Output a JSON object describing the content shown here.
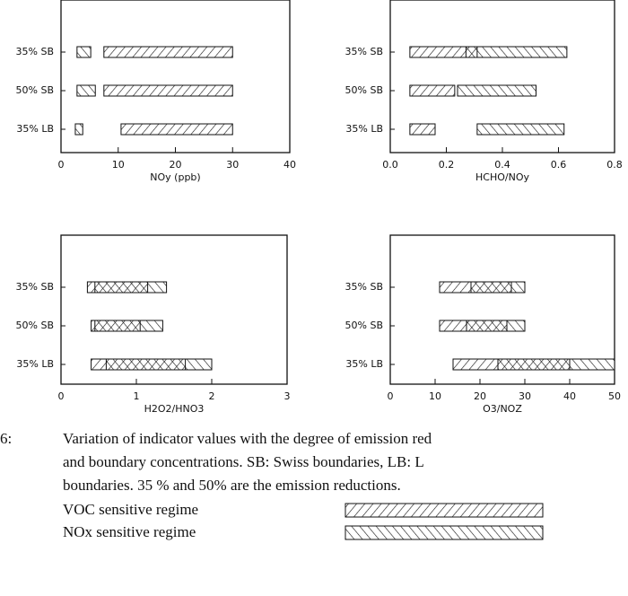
{
  "chart_data": [
    {
      "type": "range-bar",
      "categories": [
        "35% SB",
        "50% SB",
        "35% LB"
      ],
      "xlabel": "NOy (ppb)",
      "xlim": [
        0,
        40
      ],
      "xticks": [
        0,
        10,
        20,
        30,
        40
      ],
      "series": [
        {
          "name": "VOC sensitive regime",
          "hatch": "forward",
          "low": [
            7.5,
            7.5,
            10.5
          ],
          "high": [
            30,
            30,
            30
          ]
        },
        {
          "name": "NOx sensitive regime",
          "hatch": "backward",
          "low": [
            2.8,
            2.8,
            2.5
          ],
          "high": [
            5.2,
            6,
            3.8
          ]
        }
      ]
    },
    {
      "type": "range-bar",
      "categories": [
        "35% SB",
        "50% SB",
        "35% LB"
      ],
      "xlabel": "HCHO/NOy",
      "xlim": [
        0,
        0.8
      ],
      "xticks": [
        {
          "value": 0,
          "label": "0.0"
        },
        {
          "value": 0.2,
          "label": "0.2"
        },
        {
          "value": 0.4,
          "label": "0.4"
        },
        {
          "value": 0.6,
          "label": "0.6"
        },
        {
          "value": 0.8,
          "label": "0.8"
        }
      ],
      "series": [
        {
          "name": "VOC sensitive regime",
          "hatch": "forward",
          "low": [
            0.07,
            0.07,
            0.07
          ],
          "high": [
            0.31,
            0.23,
            0.16
          ]
        },
        {
          "name": "NOx sensitive regime",
          "hatch": "backward",
          "low": [
            0.27,
            0.24,
            0.31
          ],
          "high": [
            0.63,
            0.52,
            0.62
          ]
        }
      ]
    },
    {
      "type": "range-bar",
      "categories": [
        "35% SB",
        "50% SB",
        "35% LB"
      ],
      "xlabel": "H2O2/HNO3",
      "xlim": [
        0,
        3
      ],
      "xticks": [
        0,
        1,
        2,
        3
      ],
      "series": [
        {
          "name": "VOC sensitive regime",
          "hatch": "forward",
          "low": [
            0.35,
            0.4,
            0.4
          ],
          "high": [
            1.15,
            1.05,
            1.65
          ]
        },
        {
          "name": "NOx sensitive regime",
          "hatch": "backward",
          "low": [
            0.45,
            0.45,
            0.6
          ],
          "high": [
            1.4,
            1.35,
            2.0
          ]
        }
      ]
    },
    {
      "type": "range-bar",
      "categories": [
        "35% SB",
        "50% SB",
        "35% LB"
      ],
      "xlabel": "O3/NOZ",
      "xlim": [
        0,
        50
      ],
      "xticks": [
        0,
        10,
        20,
        30,
        40,
        50
      ],
      "series": [
        {
          "name": "VOC sensitive regime",
          "hatch": "forward",
          "low": [
            11,
            11,
            14
          ],
          "high": [
            27,
            26,
            40
          ]
        },
        {
          "name": "NOx sensitive regime",
          "hatch": "backward",
          "low": [
            18,
            17,
            24
          ],
          "high": [
            30,
            30,
            50
          ]
        }
      ]
    }
  ],
  "caption": {
    "label": "6:",
    "lines": [
      "Variation of indicator values with the degree of emission red",
      "and boundary concentrations. SB: Swiss boundaries, LB: L",
      "boundaries. 35 % and 50% are the emission reductions."
    ]
  },
  "legend": [
    {
      "text": "VOC sensitive regime",
      "hatch": "forward"
    },
    {
      "text": "NOx sensitive regime",
      "hatch": "backward"
    }
  ]
}
